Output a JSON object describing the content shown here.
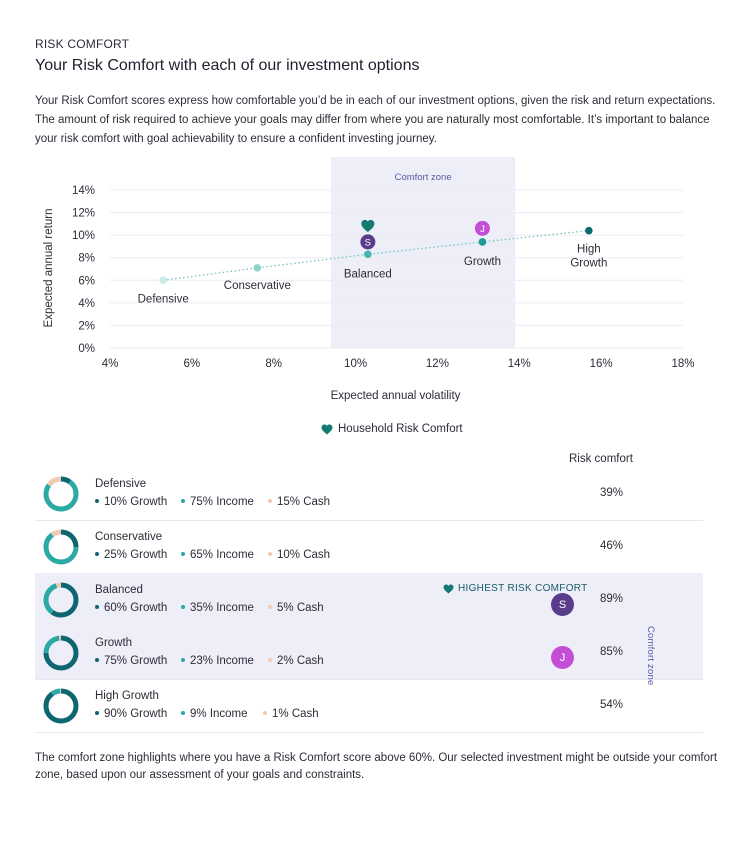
{
  "eyebrow": "RISK COMFORT",
  "title": "Your Risk Comfort with each of our investment options",
  "intro": "Your Risk Comfort scores express how comfortable you’d be in each of our investment options, given the risk and return expectations. The amount of risk required to achieve your goals may differ from where you are naturally most comfortable. It’s important to balance your risk comfort with goal achievability to ensure a confident investing journey.",
  "colors": {
    "comfort_zone": "#eeeef9",
    "teal_dark": "#0e6670",
    "teal_mid": "#2aa9a5",
    "teal_light": "#9fded8",
    "cash": "#f2c9b3",
    "purple_s": "#5a3d8a",
    "pink_j": "#c44fd6",
    "heart": "#147a73"
  },
  "chart_data": {
    "type": "scatter",
    "xlabel": "Expected annual volatility",
    "ylabel": "Expected annual return",
    "xlim": [
      4,
      18
    ],
    "ylim": [
      0,
      14
    ],
    "x_ticks": [
      "4%",
      "6%",
      "8%",
      "10%",
      "12%",
      "14%",
      "16%",
      "18%"
    ],
    "y_ticks": [
      "0%",
      "2%",
      "4%",
      "6%",
      "8%",
      "10%",
      "12%",
      "14%"
    ],
    "grid": true,
    "comfort_zone": {
      "label": "Comfort zone",
      "x_range": [
        9.4,
        13.9
      ]
    },
    "points": [
      {
        "name": "Defensive",
        "x": 5.3,
        "y": 6.0,
        "color": "#c9ece8"
      },
      {
        "name": "Conservative",
        "x": 7.6,
        "y": 7.1,
        "color": "#8fd3cc"
      },
      {
        "name": "Balanced",
        "x": 10.3,
        "y": 8.3,
        "color": "#46b5ac"
      },
      {
        "name": "Growth",
        "x": 13.1,
        "y": 9.4,
        "color": "#1c9a94"
      },
      {
        "name": "High Growth",
        "x": 15.7,
        "y": 10.4,
        "color": "#0b6b70"
      }
    ],
    "markers": [
      {
        "type": "heart",
        "x": 10.3,
        "y": 10.8
      },
      {
        "type": "avatar",
        "label": "S",
        "x": 10.3,
        "y": 9.4
      },
      {
        "type": "avatar",
        "label": "J",
        "x": 13.1,
        "y": 10.6
      }
    ]
  },
  "legend": {
    "label": "Household Risk Comfort"
  },
  "table": {
    "header": "Risk comfort",
    "comfort_zone_label": "Comfort zone",
    "highest_label": "HIGHEST RISK COMFORT",
    "rows": [
      {
        "name": "Defensive",
        "growth": "10% Growth",
        "income": "75% Income",
        "cash": "15% Cash",
        "g": 10,
        "i": 75,
        "c": 15,
        "score": "39%"
      },
      {
        "name": "Conservative",
        "growth": "25% Growth",
        "income": "65% Income",
        "cash": "10% Cash",
        "g": 25,
        "i": 65,
        "c": 10,
        "score": "46%"
      },
      {
        "name": "Balanced",
        "growth": "60% Growth",
        "income": "35% Income",
        "cash": "5% Cash",
        "g": 60,
        "i": 35,
        "c": 5,
        "score": "89%",
        "avatar": "S"
      },
      {
        "name": "Growth",
        "growth": "75% Growth",
        "income": "23% Income",
        "cash": "2% Cash",
        "g": 75,
        "i": 23,
        "c": 2,
        "score": "85%",
        "avatar": "J"
      },
      {
        "name": "High Growth",
        "growth": "90% Growth",
        "income": "9% Income",
        "cash": "1% Cash",
        "g": 90,
        "i": 9,
        "c": 1,
        "score": "54%"
      }
    ]
  },
  "footer": "The comfort zone highlights where you have a Risk Comfort score above 60%. Our selected investment might be outside your comfort zone, based upon our assessment of your goals and constraints."
}
